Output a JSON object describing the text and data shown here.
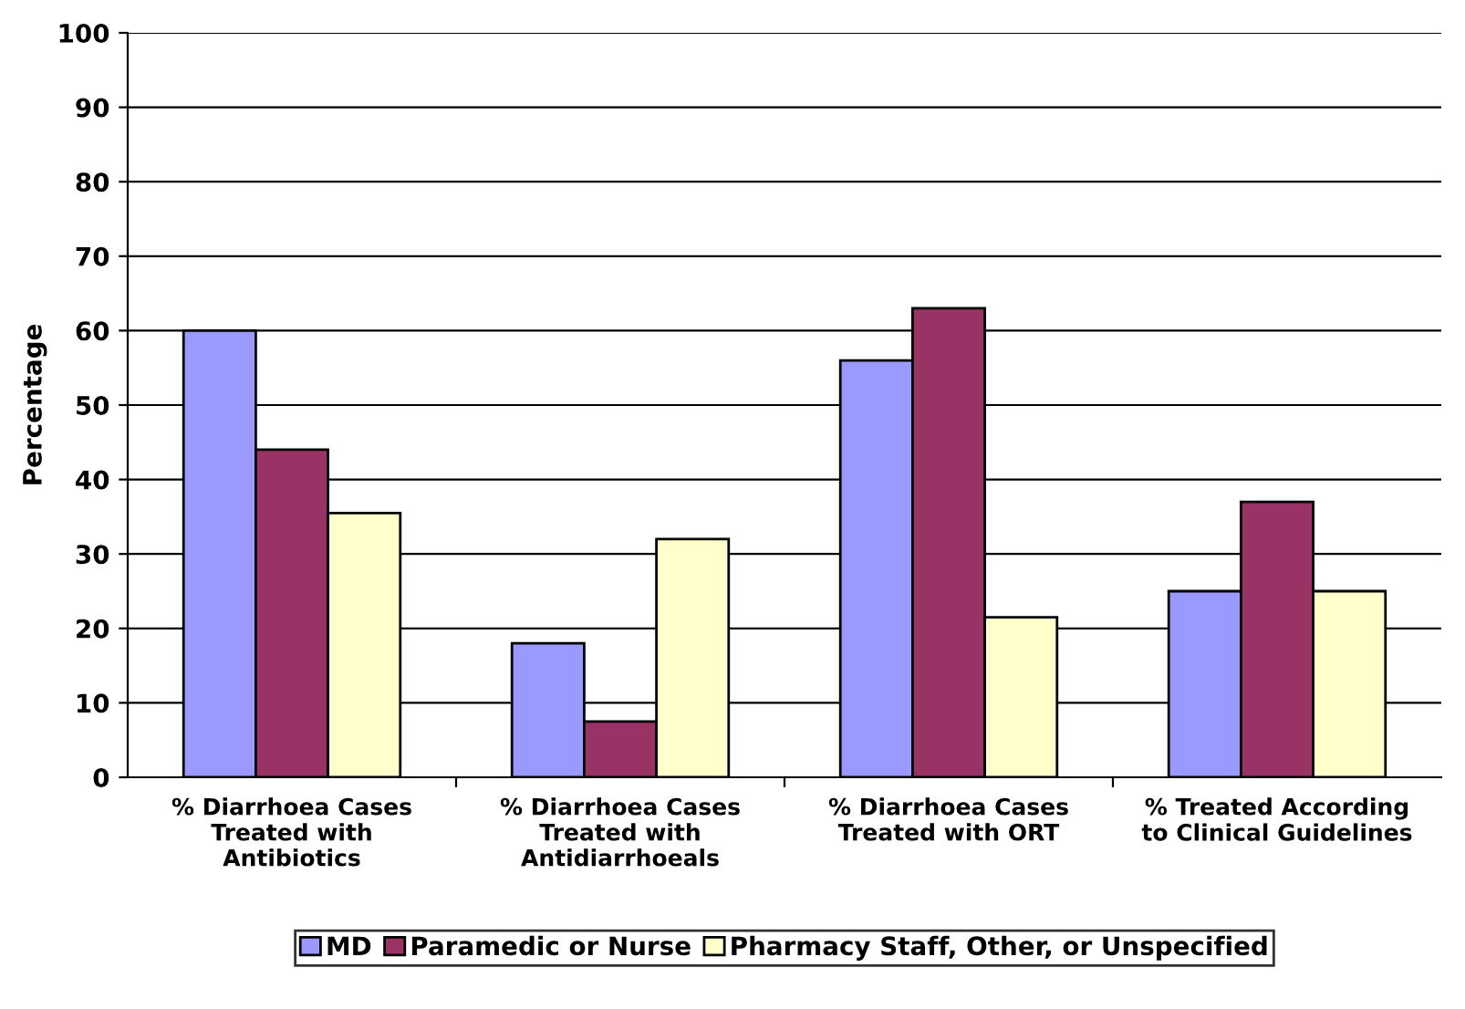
{
  "chart_data": {
    "type": "bar",
    "ylabel": "Percentage",
    "categories": [
      "% Diarrhoea Cases\nTreated with\nAntibiotics",
      "% Diarrhoea Cases\nTreated with\nAntidiarrhoeals",
      "% Diarrhoea Cases\nTreated with ORT",
      "% Treated According\nto Clinical Guidelines"
    ],
    "series": [
      {
        "name": "MD",
        "color": "#9999ff",
        "values": [
          60,
          18,
          56,
          25
        ]
      },
      {
        "name": "Paramedic or Nurse",
        "color": "#993366",
        "values": [
          44,
          7.5,
          63,
          37
        ]
      },
      {
        "name": "Pharmacy Staff, Other, or Unspecified",
        "color": "#ffffcc",
        "values": [
          35.5,
          32,
          21.5,
          25
        ]
      }
    ],
    "ylim": [
      0,
      100
    ],
    "yticks": [
      0,
      10,
      20,
      30,
      40,
      50,
      60,
      70,
      80,
      90,
      100
    ],
    "grid": "y",
    "legend": "bottom"
  }
}
